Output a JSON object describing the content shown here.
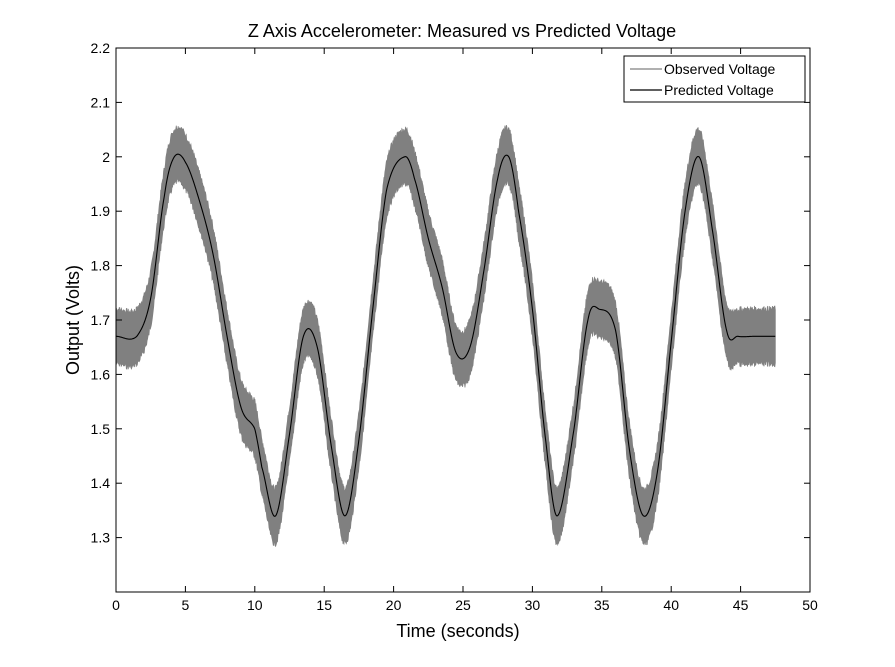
{
  "chart_data": {
    "type": "line",
    "title": "Z Axis Accelerometer: Measured vs Predicted Voltage",
    "xlabel": "Time (seconds)",
    "ylabel": "Output (Volts)",
    "xlim": [
      0,
      50
    ],
    "ylim": [
      1.2,
      2.2
    ],
    "xticks": [
      0,
      5,
      10,
      15,
      20,
      25,
      30,
      35,
      40,
      45,
      50
    ],
    "yticks": [
      1.3,
      1.4,
      1.5,
      1.6,
      1.7,
      1.8,
      1.9,
      2.0,
      2.1,
      2.2
    ],
    "ytick_labels": [
      "1.3",
      "1.4",
      "1.5",
      "1.6",
      "1.7",
      "1.8",
      "1.9",
      "2",
      "2.1",
      "2.2"
    ],
    "grid": false,
    "legend_position": "top-right",
    "series": [
      {
        "name": "Observed Voltage",
        "color": "#808080",
        "noise_amplitude": 0.05,
        "x": [
          0,
          1.5,
          2.5,
          3.5,
          4.2,
          5,
          6,
          7,
          8,
          9,
          10,
          10.5,
          11.5,
          12.5,
          13.5,
          14.5,
          15.5,
          16.5,
          17.5,
          18.5,
          19.5,
          20.8,
          21.5,
          22.5,
          23.5,
          24.5,
          25.5,
          26.5,
          27.5,
          28.3,
          29,
          30,
          31,
          31.8,
          33,
          34,
          34.8,
          36,
          37,
          38,
          39,
          40,
          41,
          42,
          43,
          44,
          44.8,
          46,
          47.5
        ],
        "y": [
          1.67,
          1.67,
          1.74,
          1.93,
          2.0,
          1.99,
          1.92,
          1.82,
          1.67,
          1.54,
          1.5,
          1.43,
          1.34,
          1.49,
          1.67,
          1.65,
          1.47,
          1.34,
          1.48,
          1.72,
          1.94,
          2.0,
          1.96,
          1.85,
          1.76,
          1.64,
          1.65,
          1.79,
          1.96,
          2.0,
          1.9,
          1.72,
          1.47,
          1.34,
          1.5,
          1.7,
          1.72,
          1.68,
          1.46,
          1.34,
          1.42,
          1.66,
          1.9,
          2.0,
          1.86,
          1.68,
          1.67,
          1.67,
          1.67
        ]
      },
      {
        "name": "Predicted Voltage",
        "color": "#000000",
        "x": [
          0,
          1.5,
          2.5,
          3.5,
          4.2,
          5,
          6,
          7,
          8,
          9,
          10,
          10.5,
          11.5,
          12.5,
          13.5,
          14.5,
          15.5,
          16.5,
          17.5,
          18.5,
          19.5,
          20.8,
          21.5,
          22.5,
          23.5,
          24.5,
          25.5,
          26.5,
          27.5,
          28.3,
          29,
          30,
          31,
          31.8,
          33,
          34,
          34.8,
          36,
          37,
          38,
          39,
          40,
          41,
          42,
          43,
          44,
          44.8,
          46,
          47.5
        ],
        "y": [
          1.67,
          1.67,
          1.74,
          1.93,
          2.0,
          1.99,
          1.92,
          1.82,
          1.67,
          1.54,
          1.5,
          1.43,
          1.34,
          1.49,
          1.67,
          1.65,
          1.47,
          1.34,
          1.48,
          1.72,
          1.94,
          2.0,
          1.96,
          1.85,
          1.76,
          1.64,
          1.65,
          1.79,
          1.96,
          2.0,
          1.9,
          1.72,
          1.47,
          1.34,
          1.5,
          1.7,
          1.72,
          1.68,
          1.46,
          1.34,
          1.42,
          1.66,
          1.9,
          2.0,
          1.86,
          1.68,
          1.67,
          1.67,
          1.67
        ]
      }
    ]
  }
}
